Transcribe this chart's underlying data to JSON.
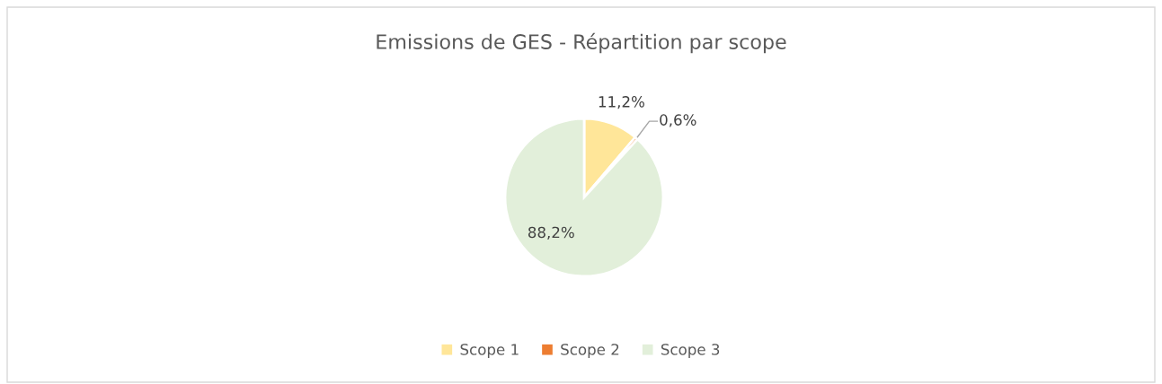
{
  "chart_data": {
    "type": "pie",
    "title": "Emissions de GES - Répartition par scope",
    "categories": [
      "Scope 1",
      "Scope 2",
      "Scope 3"
    ],
    "values": [
      11.2,
      0.6,
      88.2
    ],
    "value_labels": [
      "11,2%",
      "0,6%",
      "88,2%"
    ],
    "colors": [
      "#ffe699",
      "#ed7d31",
      "#e2efda"
    ],
    "legend": "bottom"
  }
}
